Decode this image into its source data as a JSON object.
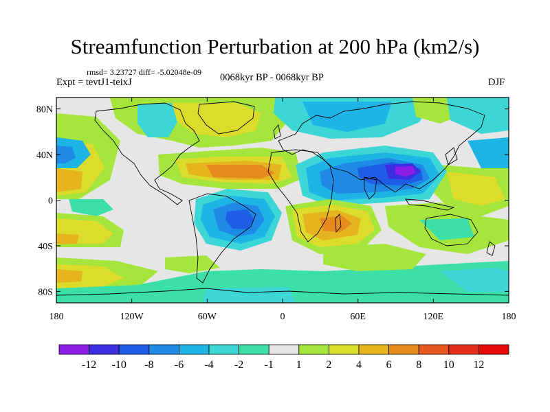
{
  "header": {
    "title": "Streamfunction Perturbation at 200 hPa (km2/s)",
    "stats": "rmsd= 3.23727 diff= -5.02048e-09",
    "experiment": "Expt = tevtJ1-teixJ",
    "period": "0068kyr BP - 0068kyr BP",
    "season": "DJF"
  },
  "axes": {
    "lat_labels": [
      "80N",
      "40N",
      "0",
      "40S",
      "80S"
    ],
    "lon_labels": [
      "180",
      "120W",
      "60W",
      "0",
      "60E",
      "120E",
      "180"
    ]
  },
  "colorbar": {
    "labels": [
      "-12",
      "-10",
      "-8",
      "-6",
      "-4",
      "-2",
      "-1",
      "1",
      "2",
      "4",
      "6",
      "8",
      "10",
      "12"
    ],
    "colors": [
      "#8c1ee8",
      "#3c2ee0",
      "#1e5ee6",
      "#1e8ae6",
      "#1eb4e6",
      "#3cd6d6",
      "#3ce0a6",
      "#e6e6e6",
      "#a6e63c",
      "#dcdc2c",
      "#e6b41e",
      "#e68a1e",
      "#e6581e",
      "#e62e1e",
      "#e60a0a"
    ]
  },
  "chart_data": {
    "type": "contour-map",
    "title": "Streamfunction Perturbation at 200 hPa (km2/s)",
    "subtitle": "0068kyr BP - 0068kyr BP",
    "variable": "streamfunction perturbation",
    "units": "km2/s",
    "season": "DJF",
    "xlim": [
      -180,
      180
    ],
    "ylim": [
      -90,
      90
    ],
    "contour_levels": [
      -12,
      -10,
      -8,
      -6,
      -4,
      -2,
      -1,
      1,
      2,
      4,
      6,
      8,
      10,
      12
    ],
    "features": [
      {
        "name": "Asian negative center",
        "lon": 95,
        "lat": 28,
        "value": -12
      },
      {
        "name": "South Atlantic/Brazil negative",
        "lon": -35,
        "lat": -15,
        "value": -9
      },
      {
        "name": "NE Pacific negative",
        "lon": -150,
        "lat": 38,
        "value": -6
      },
      {
        "name": "North Atlantic negative",
        "lon": -55,
        "lat": 65,
        "value": -5
      },
      {
        "name": "Arctic Europe negative",
        "lon": 30,
        "lat": 70,
        "value": -4
      },
      {
        "name": "NW Pacific negative",
        "lon": 170,
        "lat": 38,
        "value": -7
      },
      {
        "name": "North Atlantic subtropical positive",
        "lon": -40,
        "lat": 28,
        "value": 7
      },
      {
        "name": "Southern Africa positive",
        "lon": 30,
        "lat": -20,
        "value": 7
      },
      {
        "name": "Central Pacific positive",
        "lon": -165,
        "lat": 15,
        "value": 7
      },
      {
        "name": "Southern Ocean band",
        "lon": 0,
        "lat": -65,
        "value": -2
      }
    ]
  }
}
